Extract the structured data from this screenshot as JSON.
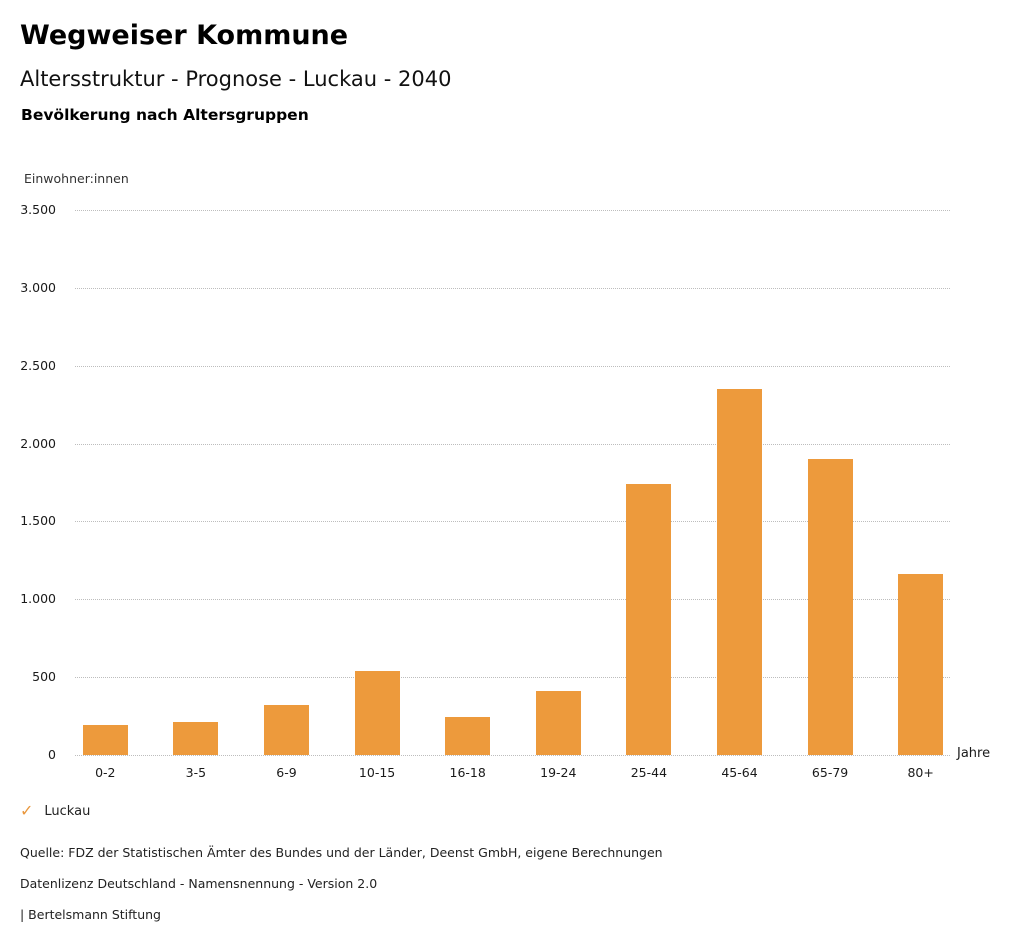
{
  "header": {
    "title": "Wegweiser Kommune",
    "subtitle": "Altersstruktur - Prognose - Luckau - 2040",
    "section_heading": "Bevölkerung nach Altersgruppen"
  },
  "chart_data": {
    "type": "bar",
    "title": "Bevölkerung nach Altersgruppen",
    "ylabel": "Einwohner:innen",
    "xlabel": "Jahre",
    "categories": [
      "0-2",
      "3-5",
      "6-9",
      "10-15",
      "16-18",
      "19-24",
      "25-44",
      "45-64",
      "65-79",
      "80+"
    ],
    "values": [
      190,
      215,
      320,
      540,
      245,
      410,
      1740,
      2350,
      1900,
      1160
    ],
    "series_name": "Luckau",
    "ylim": [
      0,
      3500
    ],
    "ytick_interval": 500,
    "ytick_labels": [
      "0",
      "500",
      "1.000",
      "1.500",
      "2.000",
      "2.500",
      "3.000",
      "3.500"
    ],
    "grid": "horizontal-dotted",
    "bar_color": "#ED9A3C",
    "legend_position": "bottom-left"
  },
  "legend": {
    "check_icon": "✓",
    "label": "Luckau"
  },
  "footer": {
    "source_line": "Quelle: FDZ der Statistischen Ämter des Bundes und der Länder, Deenst GmbH, eigene Berechnungen",
    "license_line": "Datenlizenz Deutschland - Namensnennung - Version 2.0",
    "publisher_line": "| Bertelsmann Stiftung"
  }
}
